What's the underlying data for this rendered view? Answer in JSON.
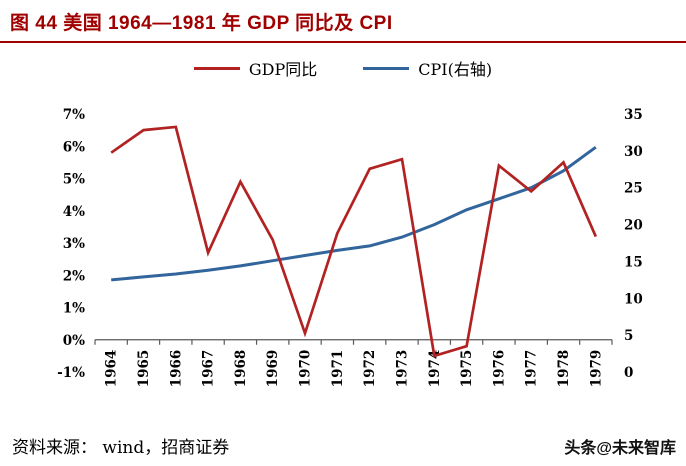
{
  "header": {
    "title": "图 44 美国 1964—1981 年 GDP 同比及 CPI",
    "accent_color": "#a00000"
  },
  "legend": {
    "gdp": "GDP同比",
    "cpi": "CPI(右轴)"
  },
  "footer": {
    "source": "资料来源： wind，招商证券",
    "watermark": "头条@未来智库"
  },
  "chart_data": {
    "type": "line",
    "title": "图 44 美国 1964—1981 年 GDP 同比及 CPI",
    "categories": [
      "1964",
      "1965",
      "1966",
      "1967",
      "1968",
      "1969",
      "1970",
      "1971",
      "1972",
      "1973",
      "1974",
      "1975",
      "1976",
      "1977",
      "1978",
      "1979"
    ],
    "series": [
      {
        "name": "GDP同比",
        "axis": "left",
        "color": "#b22222",
        "values": [
          5.8,
          6.5,
          6.6,
          2.7,
          4.9,
          3.1,
          0.2,
          3.3,
          5.3,
          5.6,
          -0.5,
          -0.2,
          5.4,
          4.6,
          5.5,
          3.2
        ]
      },
      {
        "name": "CPI(右轴)",
        "axis": "right",
        "color": "#31659c",
        "values": [
          12.5,
          12.9,
          13.3,
          13.8,
          14.4,
          15.1,
          15.8,
          16.5,
          17.1,
          18.3,
          20.0,
          22.0,
          23.5,
          25.0,
          27.3,
          30.5
        ]
      }
    ],
    "left_axis": {
      "min": -1,
      "max": 7,
      "step": 1,
      "suffix": "%"
    },
    "right_axis": {
      "min": 0,
      "max": 35,
      "step": 5,
      "suffix": ""
    },
    "legend_position": "top",
    "grid": false,
    "axis_color": "#595959"
  }
}
